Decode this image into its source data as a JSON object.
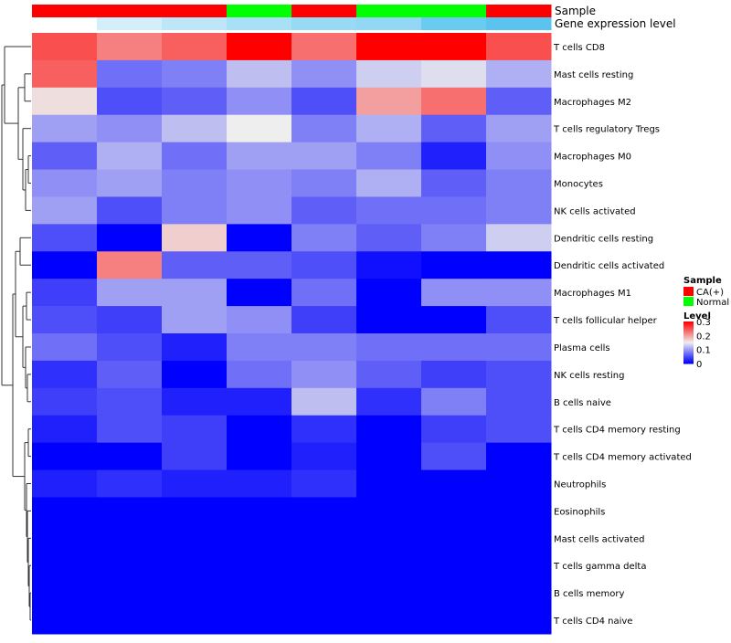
{
  "chart_data": {
    "type": "heatmap",
    "annotation_tracks": [
      {
        "name": "Sample",
        "values": [
          "CA(+)",
          "CA(+)",
          "CA(+)",
          "Normal",
          "CA(+)",
          "Normal",
          "Normal",
          "CA(+)"
        ]
      },
      {
        "name": "Gene expression level",
        "values": [
          0.0,
          0.08,
          0.12,
          0.16,
          0.19,
          0.2,
          0.27,
          0.3
        ]
      }
    ],
    "rows": [
      "T cells CD8",
      "Mast cells resting",
      "Macrophages M2",
      "T cells regulatory  Tregs",
      "Macrophages M0",
      "Monocytes",
      "NK cells activated",
      "Dendritic cells resting",
      "Dendritic cells activated",
      "Macrophages M1",
      "T cells follicular helper",
      "Plasma cells",
      "NK cells resting",
      "B cells naive",
      "T cells CD4 memory resting",
      "T cells CD4 memory activated",
      "Neutrophils",
      "Eosinophils",
      "Mast cells activated",
      "T cells gamma delta",
      "B cells memory",
      "T cells CD4 naive"
    ],
    "values": [
      [
        0.25,
        0.22,
        0.24,
        0.3,
        0.23,
        0.3,
        0.3,
        0.25
      ],
      [
        0.24,
        0.07,
        0.08,
        0.12,
        0.09,
        0.13,
        0.14,
        0.11
      ],
      [
        0.16,
        0.05,
        0.06,
        0.09,
        0.05,
        0.2,
        0.23,
        0.06
      ],
      [
        0.1,
        0.09,
        0.12,
        0.15,
        0.08,
        0.11,
        0.06,
        0.1
      ],
      [
        0.06,
        0.11,
        0.07,
        0.1,
        0.1,
        0.08,
        0.02,
        0.09
      ],
      [
        0.09,
        0.1,
        0.08,
        0.09,
        0.08,
        0.11,
        0.06,
        0.08
      ],
      [
        0.1,
        0.05,
        0.08,
        0.09,
        0.06,
        0.07,
        0.07,
        0.08
      ],
      [
        0.05,
        0.0,
        0.17,
        0.0,
        0.08,
        0.06,
        0.08,
        0.13
      ],
      [
        0.0,
        0.22,
        0.06,
        0.06,
        0.05,
        0.01,
        0.0,
        0.0
      ],
      [
        0.04,
        0.1,
        0.1,
        0.0,
        0.07,
        0.0,
        0.09,
        0.09
      ],
      [
        0.05,
        0.04,
        0.1,
        0.09,
        0.04,
        0.0,
        0.0,
        0.05
      ],
      [
        0.07,
        0.05,
        0.02,
        0.08,
        0.08,
        0.07,
        0.07,
        0.07
      ],
      [
        0.03,
        0.06,
        0.0,
        0.07,
        0.09,
        0.06,
        0.04,
        0.05
      ],
      [
        0.04,
        0.05,
        0.02,
        0.02,
        0.12,
        0.03,
        0.08,
        0.05
      ],
      [
        0.02,
        0.05,
        0.04,
        0.0,
        0.03,
        0.0,
        0.04,
        0.05
      ],
      [
        0.0,
        0.0,
        0.04,
        0.0,
        0.02,
        0.0,
        0.05,
        0.0
      ],
      [
        0.02,
        0.03,
        0.02,
        0.02,
        0.03,
        0.0,
        0.0,
        0.0
      ],
      [
        0.0,
        0.0,
        0.0,
        0.0,
        0.0,
        0.0,
        0.0,
        0.0
      ],
      [
        0.0,
        0.0,
        0.0,
        0.0,
        0.0,
        0.0,
        0.0,
        0.0
      ],
      [
        0.0,
        0.0,
        0.0,
        0.0,
        0.0,
        0.0,
        0.0,
        0.0
      ],
      [
        0.0,
        0.0,
        0.0,
        0.0,
        0.0,
        0.0,
        0.0,
        0.0
      ],
      [
        0.0,
        0.0,
        0.0,
        0.0,
        0.0,
        0.0,
        0.0,
        0.0
      ]
    ],
    "color_scale": {
      "low": "#0000FF",
      "mid": "#EEEEEE",
      "high": "#FF0000",
      "mid_value": 0.15,
      "range": [
        0,
        0.3
      ]
    },
    "gene_expression_scale": {
      "low": "#FFFFFF",
      "high": "#5BC4EE",
      "range": [
        0,
        0.3
      ]
    },
    "legends": {
      "sample": {
        "title": "Sample",
        "entries": [
          {
            "label": "CA(+)",
            "color": "#FF0000"
          },
          {
            "label": "Normal",
            "color": "#00FF00"
          }
        ]
      },
      "level": {
        "title": "Level",
        "ticks": [
          "0.3",
          "0.2",
          "0.1",
          "0"
        ],
        "tick_values": [
          0.3,
          0.2,
          0.1,
          0
        ]
      }
    },
    "sample_colors": {
      "CA(+)": "#FF0000",
      "Normal": "#00FF00"
    },
    "row_dendrogram": true
  }
}
